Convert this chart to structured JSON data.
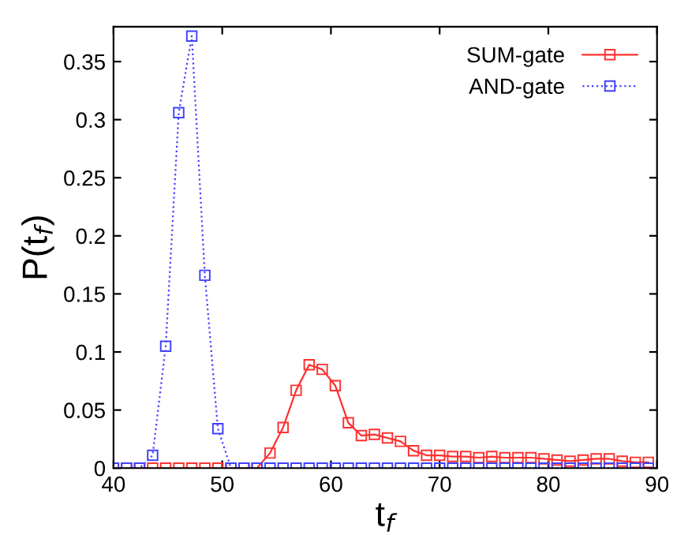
{
  "chart_data": {
    "type": "line",
    "xlabel": "t$_{f}$",
    "ylabel": "P(t$_{f}$)",
    "x": [
      40,
      41.2,
      42.4,
      43.6,
      44.8,
      46,
      47.2,
      48.4,
      49.6,
      50.8,
      52,
      53.2,
      54.4,
      55.6,
      56.8,
      58,
      59.2,
      60.4,
      61.6,
      62.8,
      64,
      65.2,
      66.4,
      67.6,
      68.8,
      70,
      71.2,
      72.4,
      73.6,
      74.8,
      76,
      77.2,
      78.4,
      79.6,
      80.8,
      82,
      83.2,
      84.4,
      85.6,
      86.8,
      88,
      89.2
    ],
    "series": [
      {
        "name": "SUM-gate",
        "color": "#ff3030",
        "line_style": "solid",
        "values": [
          0,
          0,
          0,
          0,
          0,
          0,
          0,
          0,
          0,
          0,
          0,
          0,
          0.013,
          0.035,
          0.067,
          0.089,
          0.085,
          0.071,
          0.039,
          0.028,
          0.029,
          0.026,
          0.023,
          0.015,
          0.011,
          0.011,
          0.01,
          0.01,
          0.009,
          0.01,
          0.009,
          0.009,
          0.009,
          0.008,
          0.007,
          0.006,
          0.007,
          0.008,
          0.008,
          0.006,
          0.005,
          0.005
        ]
      },
      {
        "name": "AND-gate",
        "color": "#4040ff",
        "line_style": "dotted",
        "values": [
          0,
          0,
          0,
          0.011,
          0.105,
          0.306,
          0.372,
          0.166,
          0.034,
          0,
          0,
          0,
          0,
          0,
          0,
          0,
          0,
          0,
          0,
          0,
          0,
          0,
          0,
          0,
          0,
          0,
          0,
          0,
          0,
          0,
          0,
          0,
          0,
          0,
          0,
          0,
          0,
          0,
          0,
          0,
          0,
          0
        ]
      }
    ],
    "marker": "square",
    "legend": "top right",
    "grid": false,
    "xlim": [
      40,
      90
    ],
    "xticks": [
      40,
      50,
      60,
      70,
      80,
      90
    ],
    "ylim": [
      0,
      0.38
    ],
    "yticks": [
      0,
      0.05,
      0.1,
      0.15,
      0.2,
      0.25,
      0.3,
      0.35
    ]
  }
}
